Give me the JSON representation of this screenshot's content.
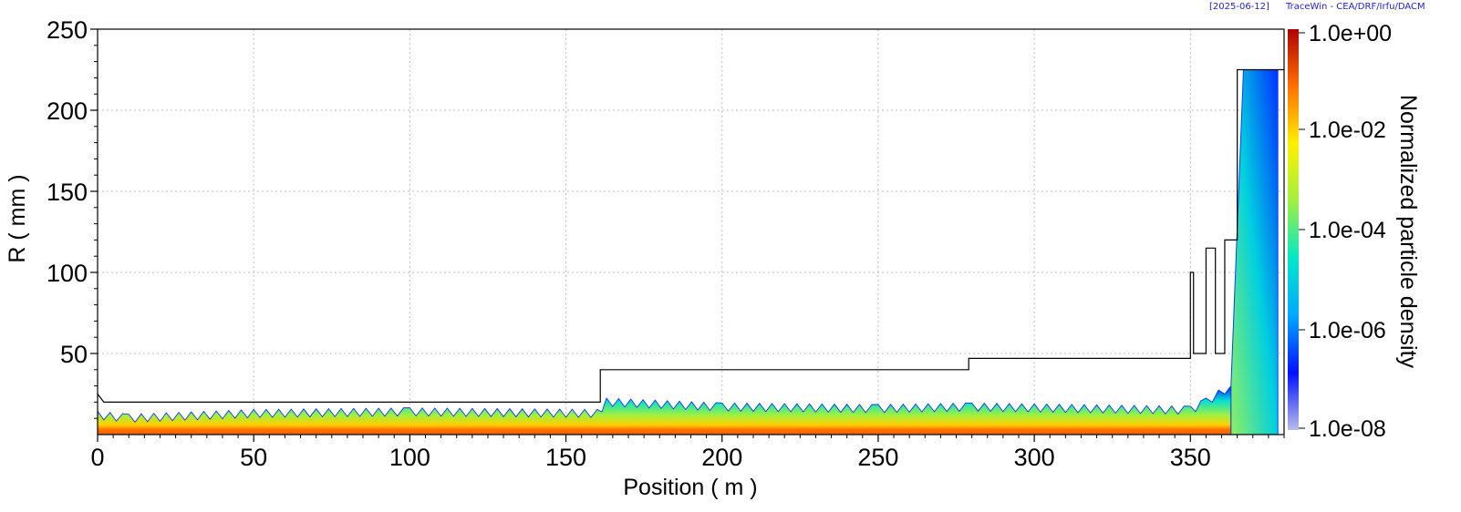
{
  "header": {
    "date": "[2025-06-12]",
    "credit": "TraceWin - CEA/DRF/Irfu/DACM"
  },
  "chart_data": {
    "type": "heatmap",
    "title": "",
    "xlabel": "Position ( m )",
    "ylabel": "R ( mm )",
    "xlim": [
      0,
      380
    ],
    "ylim": [
      0,
      250
    ],
    "x_ticks": [
      "0",
      "50",
      "100",
      "150",
      "200",
      "250",
      "300",
      "350"
    ],
    "y_ticks": [
      "50",
      "100",
      "150",
      "200",
      "250"
    ],
    "grid": true,
    "colorbar": {
      "label": "Normalized particle density",
      "scale": "log",
      "range": [
        1e-08,
        1
      ],
      "ticks": [
        "1.0e+00",
        "1.0e-02",
        "1.0e-04",
        "1.0e-06",
        "1.0e-08"
      ],
      "tick_values": [
        1,
        0.01,
        0.0001,
        1e-06,
        1e-08
      ],
      "colors": [
        "#b9bde8",
        "#0010ff",
        "#00a8ff",
        "#00e8c8",
        "#a0f040",
        "#fff000",
        "#ff7000",
        "#b00000"
      ]
    },
    "aperture": [
      {
        "x": 0,
        "r": 25
      },
      {
        "x": 2,
        "r": 20
      },
      {
        "x": 161,
        "r": 20
      },
      {
        "x": 161,
        "r": 40
      },
      {
        "x": 279,
        "r": 40
      },
      {
        "x": 279,
        "r": 47
      },
      {
        "x": 350,
        "r": 47
      },
      {
        "x": 350,
        "r": 100
      },
      {
        "x": 351,
        "r": 100
      },
      {
        "x": 351,
        "r": 50
      },
      {
        "x": 355,
        "r": 50
      },
      {
        "x": 355,
        "r": 115
      },
      {
        "x": 358,
        "r": 115
      },
      {
        "x": 358,
        "r": 50
      },
      {
        "x": 361,
        "r": 50
      },
      {
        "x": 361,
        "r": 120
      },
      {
        "x": 365,
        "r": 120
      },
      {
        "x": 365,
        "r": 225
      },
      {
        "x": 380,
        "r": 225
      }
    ],
    "beam_envelope": [
      {
        "x": 0,
        "r": 12
      },
      {
        "x": 10,
        "r": 10
      },
      {
        "x": 50,
        "r": 13
      },
      {
        "x": 100,
        "r": 14
      },
      {
        "x": 160,
        "r": 13
      },
      {
        "x": 163,
        "r": 20
      },
      {
        "x": 200,
        "r": 17
      },
      {
        "x": 250,
        "r": 16
      },
      {
        "x": 280,
        "r": 17
      },
      {
        "x": 350,
        "r": 15
      },
      {
        "x": 355,
        "r": 20
      },
      {
        "x": 363,
        "r": 30
      },
      {
        "x": 367,
        "r": 225
      },
      {
        "x": 378,
        "r": 225
      }
    ]
  }
}
